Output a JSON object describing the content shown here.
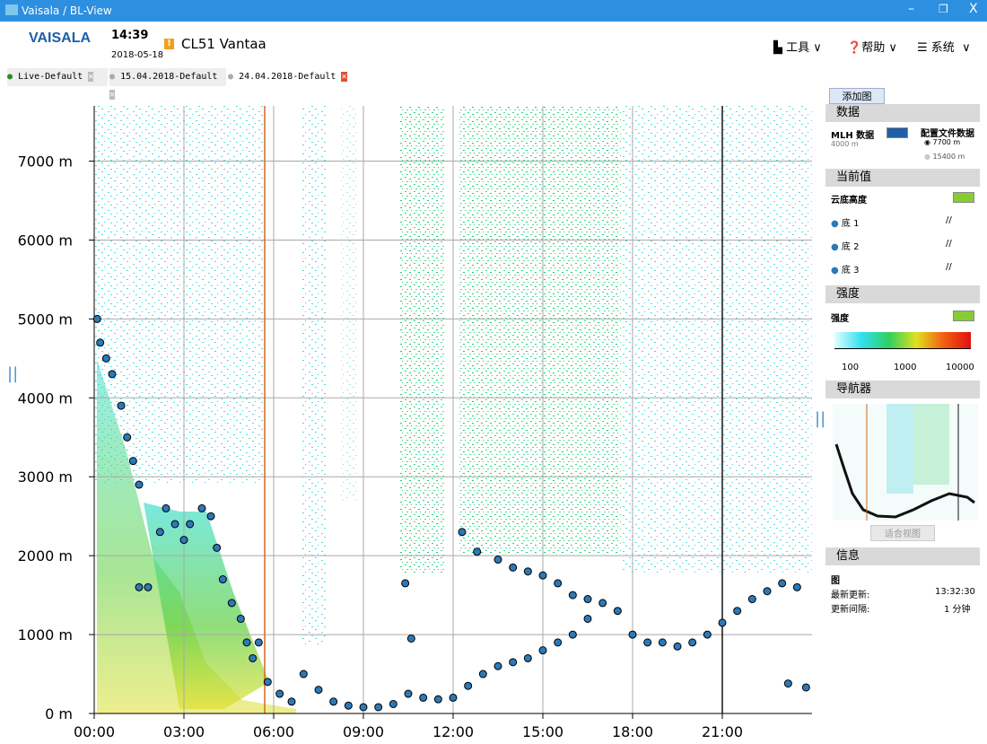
{
  "window": {
    "title": "Vaisala / BL-View"
  },
  "header": {
    "logo": "VAISALA",
    "time": "14:39",
    "date": "2018-05-18",
    "site": "CL51 Vantaa",
    "menu": [
      "工具",
      "帮助",
      "系统"
    ]
  },
  "tabs": [
    "Live-Default",
    "15.04.2018-Default",
    "24.04.2018-Default"
  ],
  "chart_data": {
    "type": "scatter",
    "x": [
      0.1,
      0.2,
      0.4,
      0.6,
      0.9,
      1.1,
      1.3,
      1.5,
      1.5,
      1.8,
      2.2,
      2.4,
      2.7,
      3.0,
      3.2,
      3.6,
      3.9,
      4.1,
      4.3,
      4.6,
      4.9,
      5.1,
      5.3,
      5.5,
      5.8,
      6.2,
      6.6,
      7.0,
      7.5,
      8.0,
      8.5,
      9.0,
      9.5,
      10.0,
      10.5,
      11.0,
      11.5,
      12.0,
      12.5,
      13.0,
      13.5,
      14.0,
      14.5,
      15.0,
      15.5,
      16.0,
      16.5,
      17.0,
      17.5,
      18.0,
      18.5,
      19.0,
      19.5,
      20.0,
      20.5,
      21.0,
      21.5,
      22.0,
      22.5,
      23.0,
      23.5,
      12.3,
      12.8,
      13.5,
      14.0,
      14.5,
      15.0,
      15.5,
      16.0,
      16.5,
      23.2,
      23.8,
      10.4,
      10.6
    ],
    "values": [
      5000,
      4700,
      4500,
      4300,
      3900,
      3500,
      3200,
      2900,
      1600,
      1600,
      2300,
      2600,
      2400,
      2200,
      2400,
      2600,
      2500,
      2100,
      1700,
      1400,
      1200,
      900,
      700,
      900,
      400,
      250,
      150,
      500,
      300,
      150,
      100,
      80,
      80,
      120,
      250,
      200,
      180,
      200,
      350,
      500,
      600,
      650,
      700,
      800,
      900,
      1000,
      1200,
      1400,
      1300,
      1000,
      900,
      900,
      850,
      900,
      1000,
      1150,
      1300,
      1450,
      1550,
      1650,
      1600,
      2300,
      2050,
      1950,
      1850,
      1800,
      1750,
      1650,
      1500,
      1450,
      380,
      330,
      1650,
      950
    ],
    "color": "#2b79b8",
    "xlim": [
      0,
      24
    ],
    "ylim": [
      0,
      7700
    ],
    "xticks": [
      {
        "value": 0,
        "label": "00:00"
      },
      {
        "value": 3,
        "label": "03:00"
      },
      {
        "value": 6,
        "label": "06:00"
      },
      {
        "value": 9,
        "label": "09:00"
      },
      {
        "value": 12,
        "label": "12:00"
      },
      {
        "value": 15,
        "label": "15:00"
      },
      {
        "value": 18,
        "label": "18:00"
      },
      {
        "value": 21,
        "label": "21:00"
      }
    ],
    "yticks": [
      {
        "value": 0,
        "label": "0 m"
      },
      {
        "value": 1000,
        "label": "1000 m"
      },
      {
        "value": 2000,
        "label": "2000 m"
      },
      {
        "value": 3000,
        "label": "3000 m"
      },
      {
        "value": 4000,
        "label": "4000 m"
      },
      {
        "value": 5000,
        "label": "5000 m"
      },
      {
        "value": 6000,
        "label": "6000 m"
      },
      {
        "value": 7000,
        "label": "7000 m"
      }
    ],
    "grid": true,
    "vlines": [
      {
        "x": 5.7,
        "color": "#d2691e"
      },
      {
        "x": 21,
        "color": "#111111"
      }
    ]
  },
  "panel": {
    "add_button": "添加图",
    "data": {
      "header": "数据",
      "mlh_label": "MLH 数据",
      "mlh_height": "4000 m",
      "profile_label": "配置文件数据",
      "profile_options": [
        "7700 m",
        "15400 m"
      ]
    },
    "current": {
      "header": "当前值",
      "cloud_base": "云底高度",
      "bases": [
        {
          "label": "底 1",
          "value": "//"
        },
        {
          "label": "底 2",
          "value": "//"
        },
        {
          "label": "底 3",
          "value": "//"
        }
      ]
    },
    "intensity": {
      "header": "强度",
      "label": "强度",
      "scale": [
        "100",
        "1000",
        "10000"
      ]
    },
    "navigator": {
      "header": "导航器",
      "fit_button": "适合视图"
    },
    "info": {
      "header": "信息",
      "section": "图",
      "rows": [
        {
          "label": "最新更新:",
          "value": "13:32:30"
        },
        {
          "label": "更新间隔:",
          "value": "1 分钟"
        }
      ]
    }
  }
}
